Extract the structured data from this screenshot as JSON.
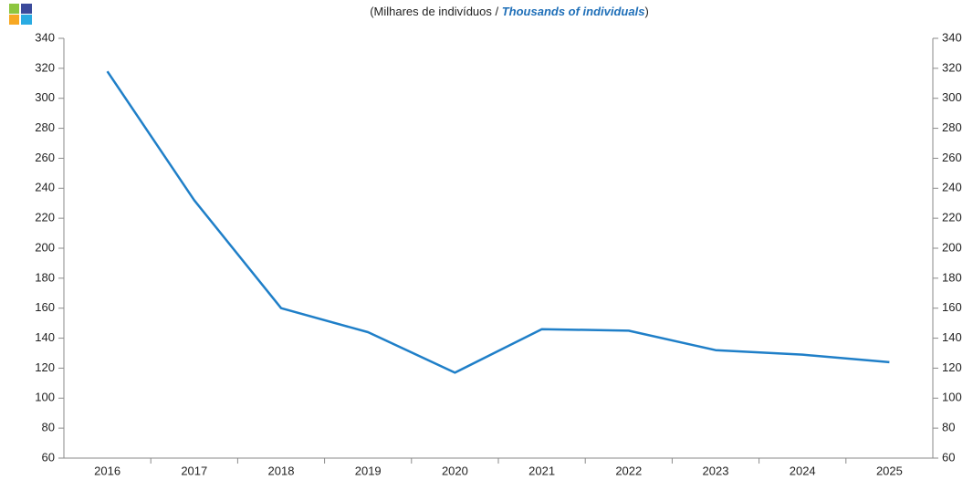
{
  "chart_data": {
    "type": "line",
    "title_parts": [
      "(Milhares de indivíduos / ",
      "Thousands of individuals",
      ")"
    ],
    "categories": [
      "2016",
      "2017",
      "2018",
      "2019",
      "2020",
      "2021",
      "2022",
      "2023",
      "2024",
      "2025"
    ],
    "series": [
      {
        "color": "#1f7fc8",
        "values": [
          318,
          232,
          160,
          144,
          117,
          146,
          145,
          132,
          129,
          124
        ]
      }
    ],
    "ylim": [
      60,
      340
    ],
    "yticks": [
      60,
      80,
      100,
      120,
      140,
      160,
      180,
      200,
      220,
      240,
      260,
      280,
      300,
      320,
      340
    ],
    "y2lim": [
      60,
      340
    ],
    "y2ticks": [
      60,
      80,
      100,
      120,
      140,
      160,
      180,
      200,
      220,
      240,
      260,
      280,
      300,
      320,
      340
    ],
    "grid": false
  }
}
